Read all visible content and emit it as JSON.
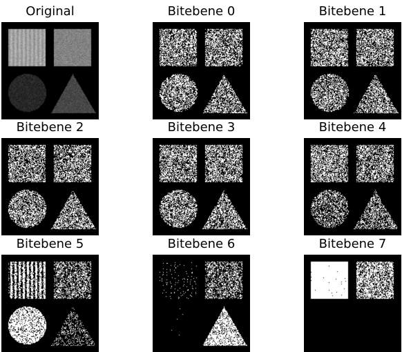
{
  "figure": {
    "background": "#ffffff",
    "panels": [
      {
        "id": "original",
        "title": "Original",
        "kind": "original"
      },
      {
        "id": "bitplane-0",
        "title": "Bitebene 0",
        "kind": "bitplane",
        "bit": 0
      },
      {
        "id": "bitplane-1",
        "title": "Bitebene 1",
        "kind": "bitplane",
        "bit": 1
      },
      {
        "id": "bitplane-2",
        "title": "Bitebene 2",
        "kind": "bitplane",
        "bit": 2
      },
      {
        "id": "bitplane-3",
        "title": "Bitebene 3",
        "kind": "bitplane",
        "bit": 3
      },
      {
        "id": "bitplane-4",
        "title": "Bitebene 4",
        "kind": "bitplane",
        "bit": 4
      },
      {
        "id": "bitplane-5",
        "title": "Bitebene 5",
        "kind": "bitplane",
        "bit": 5
      },
      {
        "id": "bitplane-6",
        "title": "Bitebene 6",
        "kind": "bitplane",
        "bit": 6
      },
      {
        "id": "bitplane-7",
        "title": "Bitebene 7",
        "kind": "bitplane",
        "bit": 7
      }
    ]
  }
}
